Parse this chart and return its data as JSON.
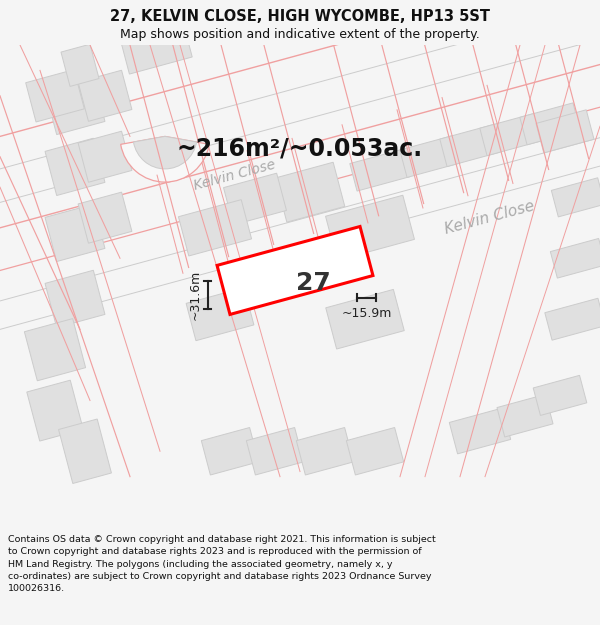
{
  "title_line1": "27, KELVIN CLOSE, HIGH WYCOMBE, HP13 5ST",
  "title_line2": "Map shows position and indicative extent of the property.",
  "area_text": "~216m²/~0.053ac.",
  "label_27": "27",
  "dim_width": "~15.9m",
  "dim_height": "~31.6m",
  "street_label_upper": "Kelvin Close",
  "street_label_lower": "Kelvin Close",
  "footer_lines": [
    "Contains OS data © Crown copyright and database right 2021. This information is subject",
    "to Crown copyright and database rights 2023 and is reproduced with the permission of",
    "HM Land Registry. The polygons (including the associated geometry, namely x, y",
    "co-ordinates) are subject to Crown copyright and database rights 2023 Ordnance Survey",
    "100026316."
  ],
  "bg_color": "#f5f5f5",
  "map_bg": "#ffffff",
  "building_fill": "#e0e0e0",
  "building_edge": "#cccccc",
  "plot_outline_color": "#f0a0a0",
  "highlight_color": "#ff0000",
  "dim_line_color": "#222222",
  "street_text_color": "#aaaaaa",
  "road_fill": "#ffffff",
  "title_color": "#111111",
  "footer_color": "#111111",
  "area_color": "#111111",
  "title_fontsize": 10.5,
  "subtitle_fontsize": 9.0,
  "area_fontsize": 17,
  "label27_fontsize": 18,
  "street_fontsize": 10,
  "dim_fontsize": 9,
  "footer_fontsize": 6.8
}
